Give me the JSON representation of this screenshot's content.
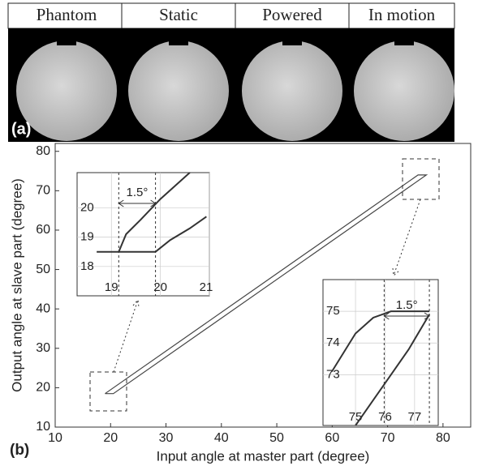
{
  "panel_a": {
    "label": "(a)",
    "columns": [
      "Phantom",
      "Static",
      "Powered",
      "In motion"
    ]
  },
  "chart_data": [
    {
      "type": "line",
      "panel_label": "(b)",
      "x_label": "Input angle at master part (degree)",
      "y_label": "Output angle at slave part (degree)",
      "xlim": [
        10,
        85
      ],
      "ylim": [
        10,
        82
      ],
      "xticks": [
        10,
        20,
        30,
        40,
        50,
        60,
        70,
        80
      ],
      "yticks": [
        10,
        20,
        30,
        40,
        50,
        60,
        70,
        80
      ],
      "grid": false,
      "series": [
        {
          "color": "#444444",
          "x": [
            19,
            75.5,
            77,
            20.5,
            19
          ],
          "values": [
            18.5,
            74,
            74,
            18.5,
            18.5
          ]
        }
      ]
    },
    {
      "type": "line",
      "annotation": "1.5°",
      "xlim": [
        18.3,
        21
      ],
      "ylim": [
        17,
        21.2
      ],
      "xticks": [
        19,
        20,
        21
      ],
      "yticks": [
        18,
        19,
        20
      ],
      "grid": true,
      "guides": [
        19.15,
        19.9
      ],
      "series": [
        {
          "color": "#333333",
          "x": [
            19.15,
            19.3,
            19.6,
            20.0,
            20.4,
            20.6
          ],
          "values": [
            18.5,
            19.1,
            19.6,
            20.3,
            20.9,
            21.2
          ]
        },
        {
          "color": "#333333",
          "x": [
            18.7,
            19.1,
            19.9,
            20.2,
            20.6,
            20.94
          ],
          "values": [
            18.5,
            18.5,
            18.5,
            18.9,
            19.3,
            19.7
          ]
        }
      ]
    },
    {
      "type": "line",
      "annotation": "1.5°",
      "xlim": [
        73.9,
        77.8
      ],
      "ylim": [
        71.4,
        76
      ],
      "xticks": [
        75,
        76,
        77
      ],
      "yticks": [
        73,
        74,
        75
      ],
      "grid": true,
      "guides": [
        75.97,
        77.5
      ],
      "series": [
        {
          "color": "#333333",
          "x": [
            74.2,
            74.6,
            75.0,
            75.6,
            76.2,
            77.5
          ],
          "values": [
            73.1,
            73.7,
            74.3,
            74.8,
            75.0,
            75.0
          ]
        },
        {
          "color": "#333333",
          "x": [
            75.0,
            75.6,
            76.2,
            76.8,
            77.5
          ],
          "values": [
            71.4,
            72.2,
            73.0,
            73.8,
            74.9
          ]
        }
      ]
    }
  ]
}
